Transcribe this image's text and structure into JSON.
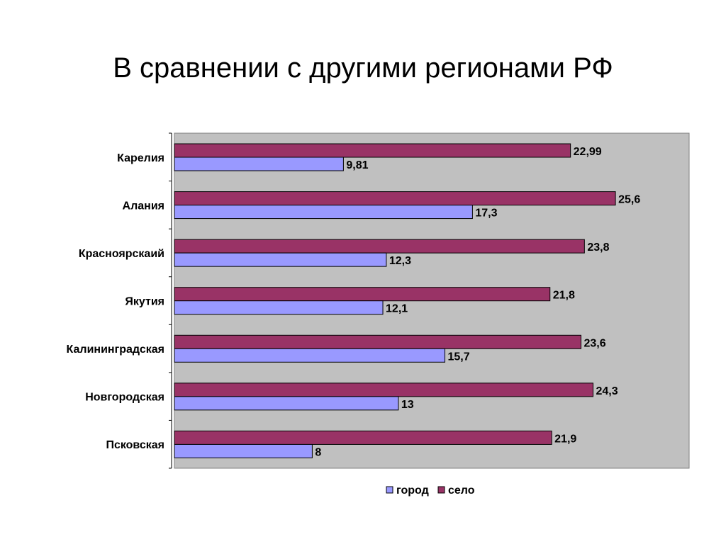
{
  "title": "В сравнении с другими регионами РФ",
  "colors": {
    "plot_background": "#c0c0c0",
    "gorod": "#9999ff",
    "selo": "#993366",
    "border": "#808080"
  },
  "chart_data": {
    "type": "bar",
    "orientation": "horizontal",
    "categories": [
      "Карелия",
      "Алания",
      "Красноярскаий",
      "Якутия",
      "Калининградская",
      "Новгородская",
      "Псковская"
    ],
    "series": [
      {
        "name": "село",
        "values": [
          22.99,
          25.6,
          23.8,
          21.8,
          23.6,
          24.3,
          21.9
        ],
        "labels": [
          "22,99",
          "25,6",
          "23,8",
          "21,8",
          "23,6",
          "24,3",
          "21,9"
        ]
      },
      {
        "name": "город",
        "values": [
          9.81,
          17.3,
          12.3,
          12.1,
          15.7,
          13,
          8
        ],
        "labels": [
          "9,81",
          "17,3",
          "12,3",
          "12,1",
          "15,7",
          "13",
          "8"
        ]
      }
    ],
    "legend": [
      "город",
      "село"
    ],
    "legend_placement": "bottom",
    "xlim": [
      0,
      30
    ],
    "grid": false,
    "xlabel": "",
    "ylabel": ""
  }
}
